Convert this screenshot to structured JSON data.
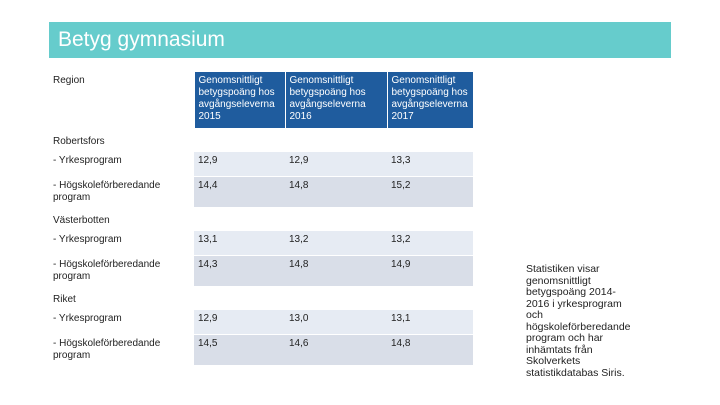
{
  "title": "Betyg gymnasium",
  "table": {
    "header": {
      "region": "Region",
      "years": [
        "Genomsnittligt betygspoäng hos avgångseleverna 2015",
        "Genomsnittligt betygspoäng hos avgångseleverna 2016",
        "Genomsnittligt betygspoäng hos avgångseleverna 2017"
      ]
    },
    "groups": [
      {
        "region": "Robertsfors",
        "rows": [
          {
            "label": " - Yrkesprogram",
            "values": [
              "12,9",
              "12,9",
              "13,3"
            ]
          },
          {
            "label": " - Högskoleförberedande program",
            "values": [
              "14,4",
              "14,8",
              "15,2"
            ]
          }
        ]
      },
      {
        "region": "Västerbotten",
        "rows": [
          {
            "label": " - Yrkesprogram",
            "values": [
              "13,1",
              "13,2",
              "13,2"
            ]
          },
          {
            "label": " - Högskoleförberedande program",
            "values": [
              "14,3",
              "14,8",
              "14,9"
            ]
          }
        ]
      },
      {
        "region": "Riket",
        "rows": [
          {
            "label": " - Yrkesprogram",
            "values": [
              "12,9",
              "13,0",
              "13,1"
            ]
          },
          {
            "label": " - Högskoleförberedande program",
            "values": [
              "14,5",
              "14,6",
              "14,8"
            ]
          }
        ]
      }
    ]
  },
  "note": "Statistiken visar genomsnittligt betygspoäng 2014-2016 i yrkesprogram och högskoleförberedande program och har inhämtats från Skolverkets statistikdatabas Siris."
}
